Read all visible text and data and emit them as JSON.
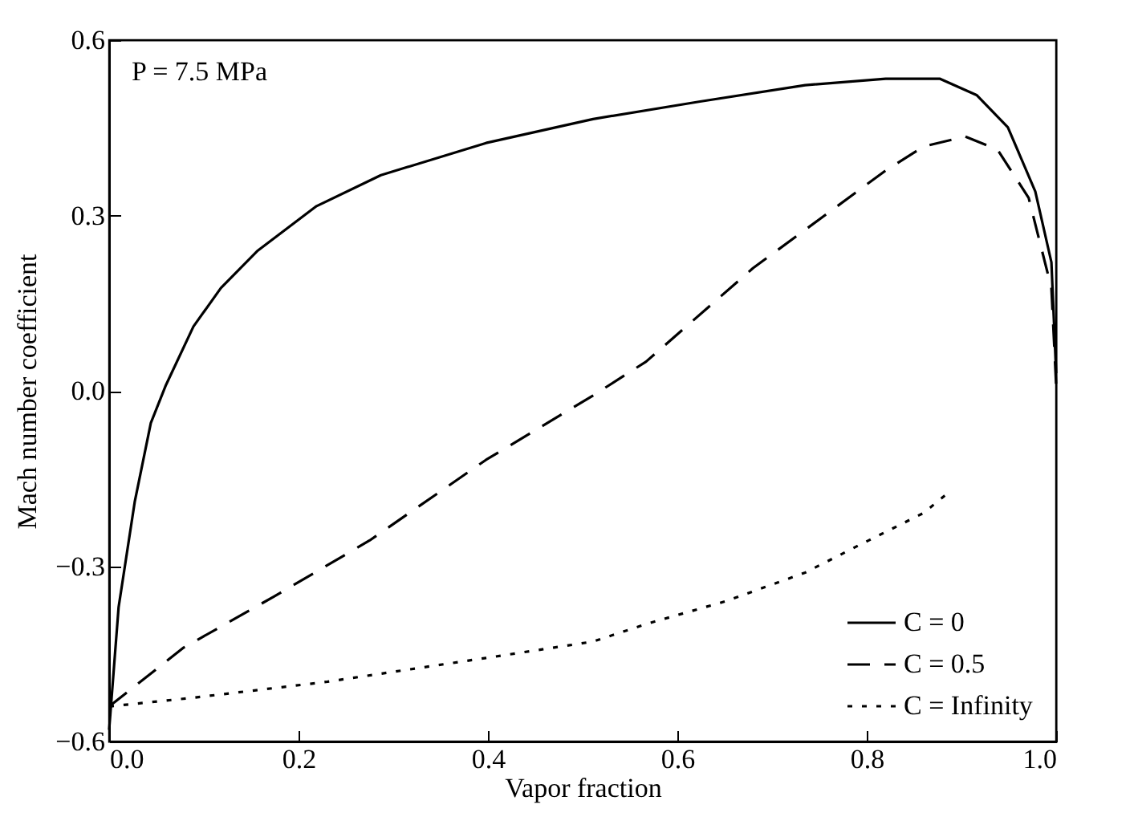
{
  "chart_data": {
    "type": "line",
    "xlabel": "Vapor fraction",
    "ylabel": "Mach number coefficient",
    "annotations": [
      "P = 7.5 MPa"
    ],
    "xlim": [
      0,
      1
    ],
    "xticks": [
      {
        "value": 0,
        "label": "0.0"
      },
      0.2,
      0.4,
      0.6,
      0.8,
      {
        "value": 1,
        "label": "1.0"
      }
    ],
    "ylim": [
      -0.6,
      0.6
    ],
    "yticks": [
      -0.6,
      -0.3,
      {
        "value": 0,
        "label": "0.0"
      },
      0.3,
      0.6
    ],
    "grid": false,
    "legend": "bottom right",
    "marker": "none",
    "series": [
      {
        "name": "C = 0",
        "color": "#000000",
        "line_style": "solid",
        "x": [
          0,
          0.01,
          0.027,
          0.044,
          0.06,
          0.089,
          0.118,
          0.157,
          0.219,
          0.287,
          0.398,
          0.511,
          0.624,
          0.735,
          0.82,
          0.877,
          0.916,
          0.949,
          0.978,
          0.995,
          1.0
        ],
        "values": [
          -0.58,
          -0.37,
          -0.19,
          -0.055,
          0.01,
          0.11,
          0.176,
          0.24,
          0.316,
          0.369,
          0.424,
          0.465,
          0.495,
          0.523,
          0.534,
          0.534,
          0.506,
          0.451,
          0.341,
          0.22,
          0.03
        ]
      },
      {
        "name": "C = 0.5",
        "color": "#000000",
        "line_style": "dashed",
        "x": [
          0,
          0.078,
          0.174,
          0.275,
          0.398,
          0.511,
          0.567,
          0.68,
          0.764,
          0.82,
          0.86,
          0.904,
          0.938,
          0.971,
          0.995,
          1.0
        ],
        "values": [
          -0.54,
          -0.44,
          -0.352,
          -0.256,
          -0.118,
          -0.008,
          0.05,
          0.21,
          0.31,
          0.377,
          0.418,
          0.435,
          0.413,
          0.33,
          0.176,
          0.01
        ]
      },
      {
        "name": "C = Infinity",
        "color": "#000000",
        "line_style": "dotted",
        "x": [
          0,
          0.089,
          0.229,
          0.398,
          0.511,
          0.567,
          0.651,
          0.735,
          0.792,
          0.86,
          0.887
        ],
        "values": [
          -0.54,
          -0.525,
          -0.498,
          -0.457,
          -0.429,
          -0.399,
          -0.36,
          -0.311,
          -0.264,
          -0.209,
          -0.173
        ]
      }
    ]
  }
}
